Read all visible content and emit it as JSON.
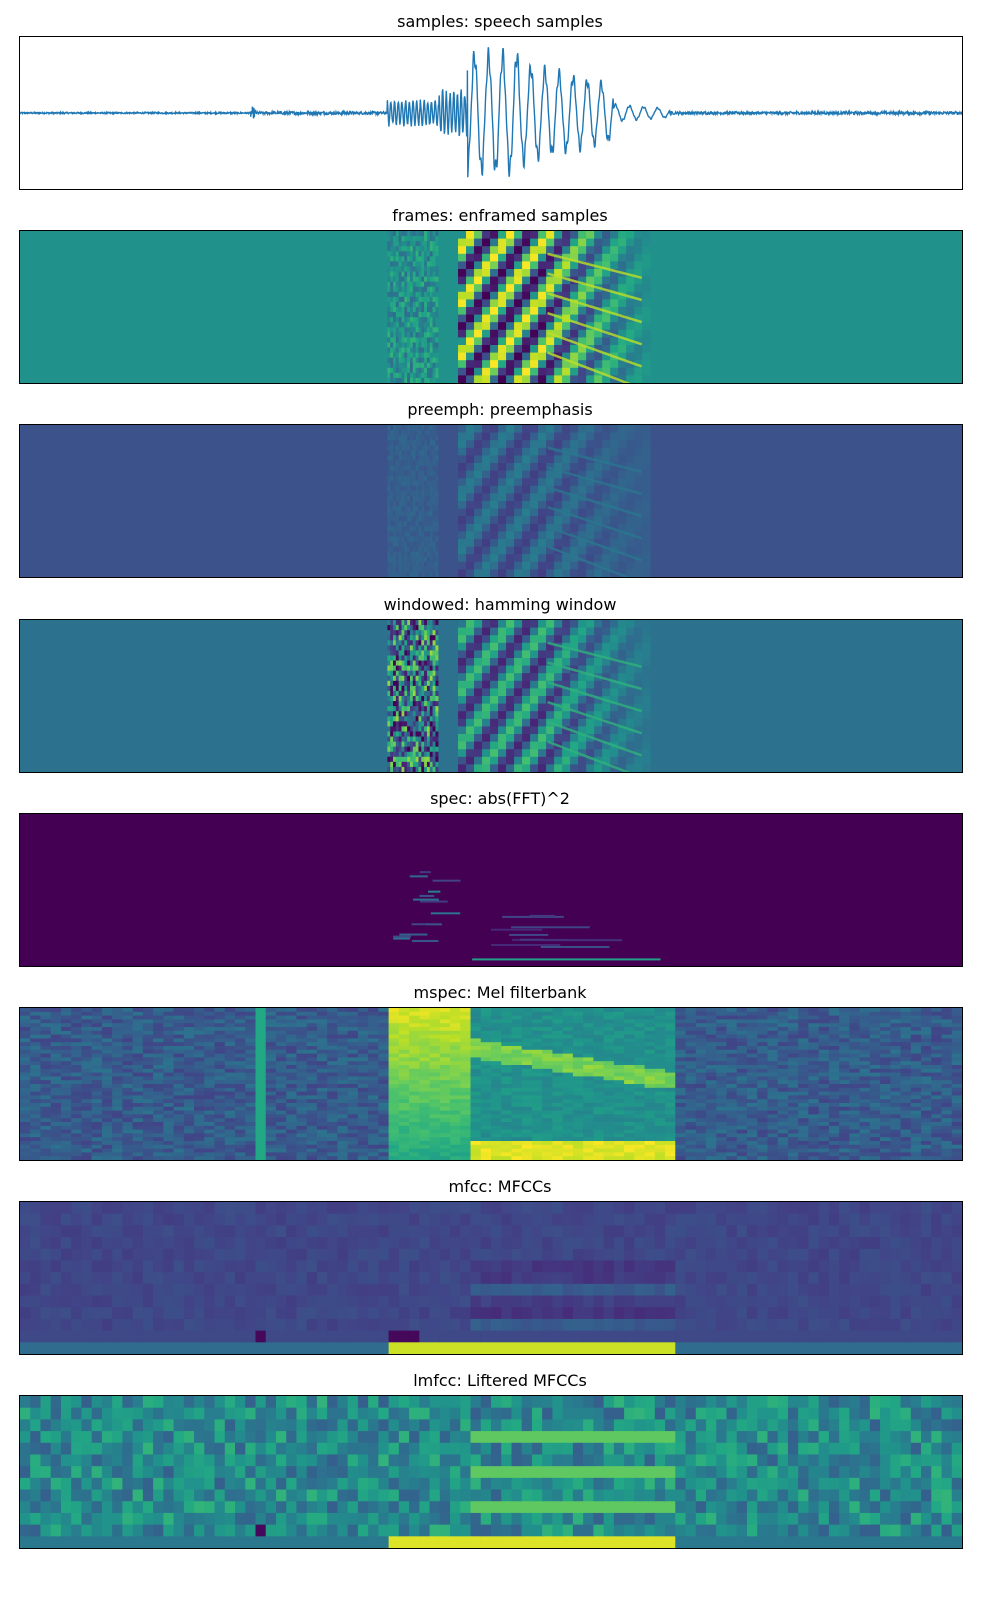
{
  "figure": {
    "panels": [
      {
        "id": "samples",
        "title": "samples: speech samples",
        "kind": "waveform"
      },
      {
        "id": "frames",
        "title": "frames: enframed samples",
        "kind": "frames"
      },
      {
        "id": "preemph",
        "title": "preemph: preemphasis",
        "kind": "preemph"
      },
      {
        "id": "windowed",
        "title": "windowed: hamming window",
        "kind": "windowed"
      },
      {
        "id": "spec",
        "title": "spec: abs(FFT)^2",
        "kind": "spec"
      },
      {
        "id": "mspec",
        "title": "mspec: Mel filterbank",
        "kind": "mspec"
      },
      {
        "id": "mfcc",
        "title": "mfcc: MFCCs",
        "kind": "mfcc"
      },
      {
        "id": "lmfcc",
        "title": "lmfcc: Liftered MFCCs",
        "kind": "lmfcc"
      }
    ]
  },
  "chart_data": [
    {
      "type": "line",
      "title": "samples: speech samples",
      "xlabel": "",
      "ylabel": "",
      "x_range": [
        0,
        1
      ],
      "y_range": [
        -1,
        1
      ],
      "grid": false,
      "legend": "none",
      "segments": [
        {
          "x_start": 0.0,
          "x_end": 0.245,
          "amplitude": 0.01
        },
        {
          "x_start": 0.245,
          "x_end": 0.25,
          "amplitude": 0.08
        },
        {
          "x_start": 0.25,
          "x_end": 0.39,
          "amplitude": 0.02
        },
        {
          "x_start": 0.39,
          "x_end": 0.445,
          "amplitude": 0.2
        },
        {
          "x_start": 0.445,
          "x_end": 0.475,
          "amplitude": 0.35
        },
        {
          "x_start": 0.475,
          "x_end": 0.53,
          "amplitude": 0.95
        },
        {
          "x_start": 0.53,
          "x_end": 0.63,
          "amplitude": 0.8
        },
        {
          "x_start": 0.63,
          "x_end": 0.69,
          "amplitude": 0.25
        },
        {
          "x_start": 0.69,
          "x_end": 1.0,
          "amplitude": 0.02
        }
      ],
      "color": "#1f77b4"
    },
    {
      "type": "heatmap",
      "title": "frames: enframed samples",
      "colormap": "viridis",
      "background": "#21918c"
    },
    {
      "type": "heatmap",
      "title": "preemph: preemphasis",
      "colormap": "viridis",
      "background": "#3b528b"
    },
    {
      "type": "heatmap",
      "title": "windowed: hamming window",
      "colormap": "viridis",
      "background": "#2c728e"
    },
    {
      "type": "heatmap",
      "title": "spec: abs(FFT)^2",
      "colormap": "viridis",
      "background": "#440154"
    },
    {
      "type": "heatmap",
      "title": "mspec: Mel filterbank",
      "colormap": "viridis",
      "rows": 40,
      "cols": 92
    },
    {
      "type": "heatmap",
      "title": "mfcc: MFCCs",
      "colormap": "viridis",
      "rows": 13,
      "cols": 92
    },
    {
      "type": "heatmap",
      "title": "lmfcc: Liftered MFCCs",
      "colormap": "viridis",
      "rows": 13,
      "cols": 92
    }
  ],
  "colors": {
    "line": "#1f77b4",
    "viridis": [
      "#440154",
      "#482475",
      "#414487",
      "#355f8d",
      "#2a788e",
      "#21918c",
      "#22a884",
      "#44bf70",
      "#7ad151",
      "#bddf26",
      "#fde725"
    ]
  }
}
